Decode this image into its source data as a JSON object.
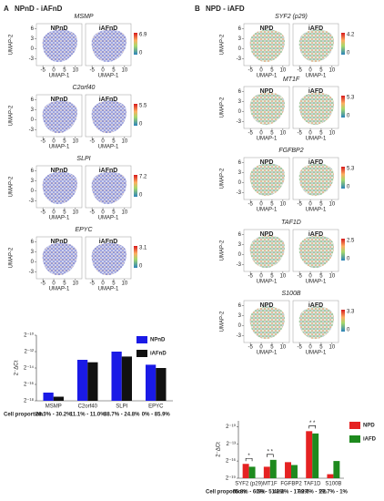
{
  "panels": [
    {
      "label": "A",
      "title": "NPnD - iAFnD",
      "conditions": [
        "NPnD",
        "iAFnD"
      ],
      "genes": [
        {
          "name": "MSMP",
          "scale_max": 6.9,
          "scale_min": 0
        },
        {
          "name": "C2orf40",
          "scale_max": 5.5,
          "scale_min": 0
        },
        {
          "name": "SLPI",
          "scale_max": 7.2,
          "scale_min": 0
        },
        {
          "name": "EPYC",
          "scale_max": 3.1,
          "scale_min": 0
        }
      ],
      "umap": {
        "xlabel": "UMAP-1",
        "ylabel": "UMAP-2",
        "xlim": [
          -8,
          13
        ],
        "ylim": [
          -5,
          7.5
        ],
        "xticks": [
          -5,
          0,
          5,
          10
        ],
        "yticks": [
          -3,
          0,
          3,
          6
        ]
      }
    },
    {
      "label": "B",
      "title": "NPD - iAFD",
      "conditions": [
        "NPD",
        "iAFD"
      ],
      "genes": [
        {
          "name": "SYF2 (p29)",
          "scale_max": 4.2,
          "scale_min": 0
        },
        {
          "name": "MT1F",
          "scale_max": 5.3,
          "scale_min": 0
        },
        {
          "name": "FGFBP2",
          "scale_max": 5.3,
          "scale_min": 0
        },
        {
          "name": "TAF1D",
          "scale_max": 2.5,
          "scale_min": 0
        },
        {
          "name": "S100B",
          "scale_max": 3.3,
          "scale_min": 0
        }
      ],
      "umap": {
        "xlabel": "UMAP-1",
        "ylabel": "UMAP-2",
        "xlim": [
          -8,
          13
        ],
        "ylim": [
          -5,
          7.5
        ],
        "xticks": [
          -5,
          0,
          5,
          10
        ],
        "yticks": [
          -3,
          0,
          3,
          6
        ]
      }
    }
  ],
  "chart_data": [
    {
      "type": "bar",
      "ylabel": "2⁻ΔCt",
      "categories": [
        "MSMP",
        "C2orf40",
        "SLPI",
        "EPYC"
      ],
      "series": [
        {
          "name": "NPnD",
          "color": "#1a1ae6",
          "values": [
            -17,
            -13,
            -12,
            -13.6
          ]
        },
        {
          "name": "iAFnD",
          "color": "#111111",
          "values": [
            -17.5,
            -13.3,
            -12.6,
            -14
          ]
        }
      ],
      "ylim": [
        -18,
        -10
      ],
      "yticks": [
        {
          "value": -18,
          "label": "2⁻¹⁸"
        },
        {
          "value": -16,
          "label": "2⁻¹⁶"
        },
        {
          "value": -14,
          "label": "2⁻¹⁴"
        },
        {
          "value": -12,
          "label": "2⁻¹²"
        },
        {
          "value": -10,
          "label": "2⁻¹⁰"
        }
      ],
      "legend": "upper right",
      "cell_proportion_label": "Cell proportion:",
      "cell_proportions": [
        "28.3% - 30.2%",
        "11.1% - 11.0%",
        "88.7% - 24.8%",
        "0% - 85.9%"
      ],
      "cell_proportion_color": "#2a5db0"
    },
    {
      "type": "bar",
      "ylabel": "2⁻ΔCt",
      "categories": [
        "SYF2 (p29)",
        "MT1F",
        "FGFBP2",
        "TAF1D",
        "S100B"
      ],
      "series": [
        {
          "name": "NPD",
          "color": "#e52222",
          "values": [
            -16.5,
            -17,
            -16.2,
            -10.8,
            -18.3
          ]
        },
        {
          "name": "iAFD",
          "color": "#1e8a1e",
          "values": [
            -17,
            -15.8,
            -16.7,
            -11.2,
            -16
          ]
        }
      ],
      "ylim": [
        -19,
        -9
      ],
      "yticks": [
        {
          "value": -19,
          "label": "2⁻¹⁹"
        },
        {
          "value": -16,
          "label": "2⁻¹⁶"
        },
        {
          "value": -13,
          "label": "2⁻¹³"
        },
        {
          "value": -10,
          "label": "2⁻¹⁰"
        }
      ],
      "legend": "right",
      "significance": [
        "*",
        "* *",
        null,
        "* *",
        null
      ],
      "cell_proportion_label": "Cell proportion:",
      "cell_proportions": [
        "65.8% - 6.5%",
        "0% - 51.2%",
        "40.2% - 17.9%",
        "92.7% - 1%",
        "22.7% - 1%"
      ],
      "cell_proportion_color": "#c0392b"
    }
  ]
}
